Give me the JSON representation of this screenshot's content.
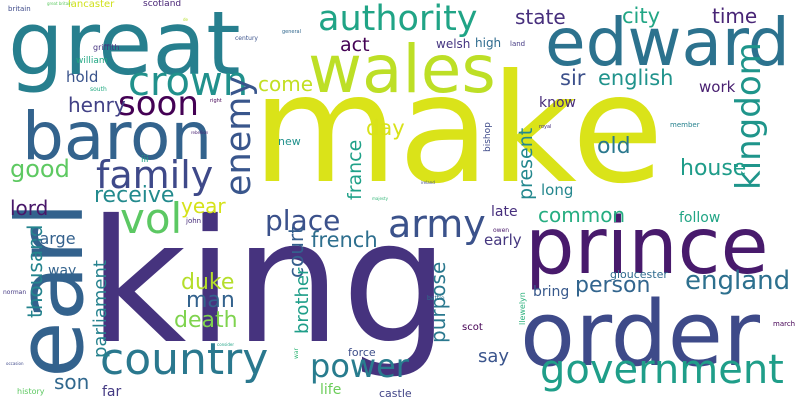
{
  "words": [
    {
      "text": "make",
      "color": "#dae319"
    },
    {
      "text": "king",
      "color": "#46337e"
    },
    {
      "text": "great",
      "color": "#277f8e"
    },
    {
      "text": "order",
      "color": "#3e4a89"
    },
    {
      "text": "prince",
      "color": "#481a6c"
    },
    {
      "text": "edward",
      "color": "#2c728e"
    },
    {
      "text": "earl",
      "color": "#33628d"
    },
    {
      "text": "wales",
      "color": "#bddf26"
    },
    {
      "text": "baron",
      "color": "#33638d"
    },
    {
      "text": "country",
      "color": "#2a788e"
    },
    {
      "text": "government",
      "color": "#1f9e89"
    },
    {
      "text": "army",
      "color": "#3b528b"
    },
    {
      "text": "authority",
      "color": "#20a486"
    },
    {
      "text": "crown",
      "color": "#21918c"
    },
    {
      "text": "family",
      "color": "#3e4989"
    },
    {
      "text": "power",
      "color": "#287c8e"
    },
    {
      "text": "kingdom",
      "color": "#1f958b"
    },
    {
      "text": "enemy",
      "color": "#39568c"
    },
    {
      "text": "vol",
      "color": "#5cc863"
    },
    {
      "text": "soon",
      "color": "#440154"
    },
    {
      "text": "england",
      "color": "#2d708e"
    },
    {
      "text": "sir",
      "color": "#3c508b"
    },
    {
      "text": "english",
      "color": "#20938c"
    },
    {
      "text": "city",
      "color": "#21a685"
    },
    {
      "text": "state",
      "color": "#472f7d"
    },
    {
      "text": "time",
      "color": "#482576"
    },
    {
      "text": "act",
      "color": "#440154"
    },
    {
      "text": "place",
      "color": "#3b518b"
    },
    {
      "text": "person",
      "color": "#32658e"
    },
    {
      "text": "french",
      "color": "#2e6f8e"
    },
    {
      "text": "house",
      "color": "#1e9c89"
    },
    {
      "text": "present",
      "color": "#23888e"
    },
    {
      "text": "receive",
      "color": "#238a8d"
    },
    {
      "text": "common",
      "color": "#26ad81"
    },
    {
      "text": "henry",
      "color": "#424186"
    },
    {
      "text": "good",
      "color": "#5ec962"
    },
    {
      "text": "court",
      "color": "#355f8d"
    },
    {
      "text": "duke",
      "color": "#b5de2b"
    },
    {
      "text": "man",
      "color": "#33628d"
    },
    {
      "text": "death",
      "color": "#7fd34e"
    },
    {
      "text": "thousand",
      "color": "#25848e"
    },
    {
      "text": "purpose",
      "color": "#2a788e"
    },
    {
      "text": "parliament",
      "color": "#26828e"
    },
    {
      "text": "france",
      "color": "#1fa188"
    },
    {
      "text": "brother",
      "color": "#1f9e89"
    },
    {
      "text": "lord",
      "color": "#481769"
    },
    {
      "text": "old",
      "color": "#2a788e"
    },
    {
      "text": "son",
      "color": "#31688e"
    },
    {
      "text": "day",
      "color": "#d8e219"
    },
    {
      "text": "year",
      "color": "#d5e21a"
    },
    {
      "text": "come",
      "color": "#c2df23"
    },
    {
      "text": "say",
      "color": "#3a548c"
    },
    {
      "text": "large",
      "color": "#34618d"
    },
    {
      "text": "work",
      "color": "#481f70"
    },
    {
      "text": "hold",
      "color": "#3a548c"
    },
    {
      "text": "long",
      "color": "#24878e"
    },
    {
      "text": "early",
      "color": "#45377f"
    },
    {
      "text": "way",
      "color": "#33638d"
    },
    {
      "text": "life",
      "color": "#6ccd5a"
    },
    {
      "text": "know",
      "color": "#472c7a"
    },
    {
      "text": "late",
      "color": "#472f7d"
    },
    {
      "text": "follow",
      "color": "#21a585"
    },
    {
      "text": "bring",
      "color": "#38598c"
    },
    {
      "text": "far",
      "color": "#443a83"
    },
    {
      "text": "high",
      "color": "#2f6b8e"
    },
    {
      "text": "welsh",
      "color": "#453581"
    },
    {
      "text": "castle",
      "color": "#414487"
    },
    {
      "text": "force",
      "color": "#3d4e8a"
    },
    {
      "text": "gloucester",
      "color": "#2f6b8e"
    },
    {
      "text": "new",
      "color": "#21918c"
    },
    {
      "text": "scot",
      "color": "#440154"
    },
    {
      "text": "bishop",
      "color": "#3e4a89"
    },
    {
      "text": "llewelyn",
      "color": "#2db27d"
    },
    {
      "text": "william",
      "color": "#22a884"
    },
    {
      "text": "griffith",
      "color": "#463480"
    },
    {
      "text": "lancaster",
      "color": "#d0e11c"
    },
    {
      "text": "scotland",
      "color": "#482475"
    },
    {
      "text": "history",
      "color": "#5ec962"
    },
    {
      "text": "march",
      "color": "#440154"
    },
    {
      "text": "john",
      "color": "#472c7a"
    },
    {
      "text": "iii",
      "color": "#20a386"
    },
    {
      "text": "owen",
      "color": "#481769"
    },
    {
      "text": "land",
      "color": "#443983"
    },
    {
      "text": "war",
      "color": "#35b779"
    },
    {
      "text": "member",
      "color": "#26828e"
    },
    {
      "text": "century",
      "color": "#3b528b"
    },
    {
      "text": "britain",
      "color": "#3e4a89"
    },
    {
      "text": "norman",
      "color": "#443983"
    },
    {
      "text": "south",
      "color": "#25ab82"
    },
    {
      "text": "general",
      "color": "#31688e"
    },
    {
      "text": "right",
      "color": "#440154"
    },
    {
      "text": "royal",
      "color": "#46307e"
    },
    {
      "text": "battle",
      "color": "#2c728e"
    },
    {
      "text": "ireland",
      "color": "#3e4989"
    },
    {
      "text": "majesty",
      "color": "#35b779"
    },
    {
      "text": "rebellion",
      "color": "#482173"
    },
    {
      "text": "consider",
      "color": "#20a386"
    },
    {
      "text": "great britain",
      "color": "#5ec962"
    },
    {
      "text": "de",
      "color": "#b5de2b"
    },
    {
      "text": "occasion",
      "color": "#3e4989"
    }
  ]
}
